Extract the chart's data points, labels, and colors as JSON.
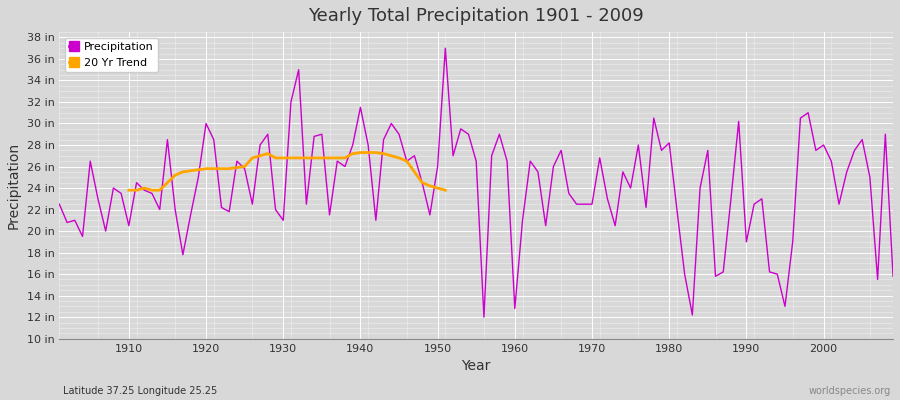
{
  "title": "Yearly Total Precipitation 1901 - 2009",
  "xlabel": "Year",
  "ylabel": "Precipitation",
  "lat_lon_label": "Latitude 37.25 Longitude 25.25",
  "watermark": "worldspecies.org",
  "background_color": "#d8d8d8",
  "plot_bg_color": "#d8d8d8",
  "precip_color": "#cc00cc",
  "trend_color": "#ffa500",
  "ylim": [
    10,
    38.5
  ],
  "years": [
    1901,
    1902,
    1903,
    1904,
    1905,
    1906,
    1907,
    1908,
    1909,
    1910,
    1911,
    1912,
    1913,
    1914,
    1915,
    1916,
    1917,
    1918,
    1919,
    1920,
    1921,
    1922,
    1923,
    1924,
    1925,
    1926,
    1927,
    1928,
    1929,
    1930,
    1931,
    1932,
    1933,
    1934,
    1935,
    1936,
    1937,
    1938,
    1939,
    1940,
    1941,
    1942,
    1943,
    1944,
    1945,
    1946,
    1947,
    1948,
    1949,
    1950,
    1951,
    1952,
    1953,
    1954,
    1955,
    1956,
    1957,
    1958,
    1959,
    1960,
    1961,
    1962,
    1963,
    1964,
    1965,
    1966,
    1967,
    1968,
    1969,
    1970,
    1971,
    1972,
    1973,
    1974,
    1975,
    1976,
    1977,
    1978,
    1979,
    1980,
    1981,
    1982,
    1983,
    1984,
    1985,
    1986,
    1987,
    1988,
    1989,
    1990,
    1991,
    1992,
    1993,
    1994,
    1995,
    1996,
    1997,
    1998,
    1999,
    2000,
    2001,
    2002,
    2003,
    2004,
    2005,
    2006,
    2007,
    2008,
    2009
  ],
  "precip": [
    22.5,
    20.8,
    21.0,
    19.5,
    26.5,
    23.0,
    20.0,
    24.0,
    23.5,
    20.5,
    24.5,
    23.8,
    23.5,
    22.0,
    28.5,
    22.0,
    17.8,
    21.5,
    25.0,
    30.0,
    28.5,
    22.2,
    21.8,
    26.5,
    25.8,
    22.5,
    28.0,
    29.0,
    22.0,
    21.0,
    32.0,
    35.0,
    22.5,
    28.8,
    29.0,
    21.5,
    26.5,
    26.0,
    28.0,
    31.5,
    28.0,
    21.0,
    28.5,
    30.0,
    29.0,
    26.5,
    27.0,
    24.5,
    21.5,
    26.0,
    37.0,
    27.0,
    29.5,
    29.0,
    26.5,
    12.0,
    27.0,
    29.0,
    26.5,
    12.8,
    21.0,
    26.5,
    25.5,
    20.5,
    26.0,
    27.5,
    23.5,
    22.5,
    22.5,
    22.5,
    26.8,
    23.0,
    20.5,
    25.5,
    24.0,
    28.0,
    22.2,
    30.5,
    27.5,
    28.2,
    22.0,
    16.0,
    12.2,
    24.0,
    27.5,
    15.8,
    16.2,
    23.0,
    30.2,
    19.0,
    22.5,
    23.0,
    16.2,
    16.0,
    13.0,
    19.0,
    30.5,
    31.0,
    27.5,
    28.0,
    26.5,
    22.5,
    25.5,
    27.5,
    28.5,
    25.0,
    15.5,
    29.0,
    15.8
  ],
  "trend_years": [
    1910,
    1911,
    1912,
    1913,
    1914,
    1915,
    1916,
    1917,
    1918,
    1919,
    1920,
    1921,
    1922,
    1923,
    1924,
    1925,
    1926,
    1927,
    1928,
    1929,
    1938,
    1939,
    1940,
    1941,
    1942,
    1943,
    1944,
    1945,
    1946,
    1947,
    1948,
    1949,
    1950,
    1951
  ],
  "trend_values": [
    23.8,
    23.8,
    24.0,
    23.8,
    23.8,
    24.5,
    25.2,
    25.5,
    25.6,
    25.7,
    25.8,
    25.8,
    25.8,
    25.8,
    25.9,
    26.0,
    26.8,
    27.0,
    27.2,
    26.8,
    26.8,
    27.2,
    27.3,
    27.3,
    27.3,
    27.2,
    27.0,
    26.8,
    26.5,
    25.5,
    24.5,
    24.2,
    24.0,
    23.8
  ]
}
